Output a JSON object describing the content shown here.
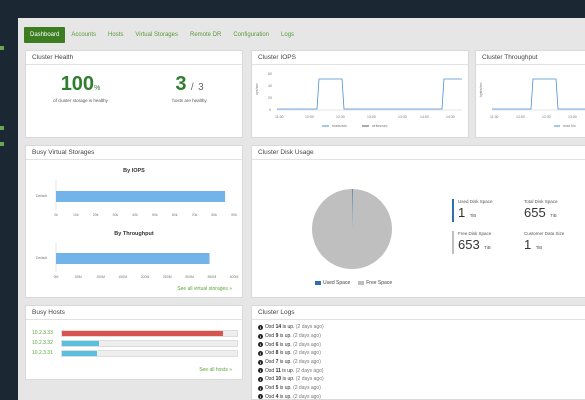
{
  "nav": {
    "tabs": [
      {
        "label": "Dashboard",
        "active": true
      },
      {
        "label": "Accounts"
      },
      {
        "label": "Hosts"
      },
      {
        "label": "Virtual Storages"
      },
      {
        "label": "Remote DR"
      },
      {
        "label": "Configuration"
      },
      {
        "label": "Logs"
      }
    ]
  },
  "health": {
    "title": "Cluster Health",
    "storage_pct": "100",
    "pct_suffix": "%",
    "storage_caption": "of cluster storage is healthy",
    "hosts_ok": "3",
    "hosts_sep": "/",
    "hosts_total": "3",
    "hosts_caption": "hosts are healthy"
  },
  "iops": {
    "title": "Cluster IOPS",
    "ylabel": "ops/sec",
    "yticks": [
      "60",
      "40",
      "20",
      "0"
    ],
    "xticks": [
      "11:30",
      "12:00",
      "12:30",
      "13:00",
      "13:30",
      "14:00",
      "14:30"
    ],
    "legend": [
      "reads/sec",
      "writes/sec"
    ],
    "accent": "#4a90d9"
  },
  "throughput": {
    "title": "Cluster Throughput",
    "ylabel": "bytes/sec",
    "xticks": [
      "11:30",
      "12:00",
      "12:30",
      "13:00"
    ],
    "legend": [
      "read b/s"
    ]
  },
  "busy_storages": {
    "title": "Busy Virtual Storages",
    "iops_chart": {
      "title": "By IOPS",
      "category": "Default",
      "value": 76,
      "xlim": [
        0,
        80
      ],
      "ticks": [
        "0k",
        "10k",
        "20k",
        "30k",
        "40k",
        "50k",
        "60k",
        "70k",
        "80k",
        "90k"
      ]
    },
    "thr_chart": {
      "title": "By Throughput",
      "category": "Default",
      "value": 345,
      "xlim": [
        0,
        400
      ],
      "ticks": [
        "0M",
        "50M",
        "100M",
        "150M",
        "200M",
        "250M",
        "300M",
        "350M",
        "400M"
      ]
    },
    "link": "See all virtual storages »"
  },
  "disk": {
    "title": "Cluster Disk Usage",
    "legend_used": "Used Space",
    "legend_free": "Free Space",
    "used_label": "Used Disk Space",
    "used_value": "1",
    "used_unit": "TiB",
    "total_label": "Total Disk Space",
    "total_value": "655",
    "total_unit": "TiB",
    "free_label": "Free Disk Space",
    "free_value": "653",
    "free_unit": "TiB",
    "cust_label": "Customer Data Size",
    "cust_value": "1",
    "cust_unit": "TiB",
    "colors": {
      "used": "#2f6fb0",
      "free": "#bfbfbf"
    }
  },
  "busy_hosts": {
    "title": "Busy Hosts",
    "hosts": [
      {
        "name": "10.2.3.33",
        "fill": 0.92,
        "color": "#d9534f"
      },
      {
        "name": "10.2.3.32",
        "fill": 0.21,
        "color": "#5bc0de"
      },
      {
        "name": "10.2.3.31",
        "fill": 0.2,
        "color": "#5bc0de"
      }
    ],
    "link": "See all hosts »"
  },
  "logs": {
    "title": "Cluster Logs",
    "items": [
      {
        "prefix": "Osd ",
        "num": "14",
        "suffix": " is up.",
        "time": " (2 days ago)"
      },
      {
        "prefix": "Osd ",
        "num": "9",
        "suffix": " is up.",
        "time": " (2 days ago)"
      },
      {
        "prefix": "Osd ",
        "num": "6",
        "suffix": " is up.",
        "time": " (2 days ago)"
      },
      {
        "prefix": "Osd ",
        "num": "8",
        "suffix": " is up.",
        "time": " (2 days ago)"
      },
      {
        "prefix": "Osd ",
        "num": "7",
        "suffix": " is up.",
        "time": " (2 days ago)"
      },
      {
        "prefix": "Osd ",
        "num": "11",
        "suffix": " is up.",
        "time": " (2 days ago)"
      },
      {
        "prefix": "Osd ",
        "num": "10",
        "suffix": " is up.",
        "time": " (2 days ago)"
      },
      {
        "prefix": "Osd ",
        "num": "5",
        "suffix": " is up.",
        "time": " (2 days ago)"
      },
      {
        "prefix": "Osd ",
        "num": "4",
        "suffix": " is up.",
        "time": " (2 days ago)"
      }
    ]
  }
}
